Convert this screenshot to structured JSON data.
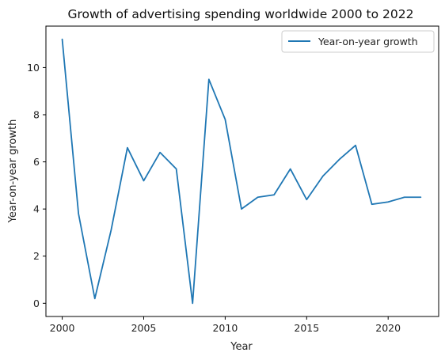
{
  "chart_data": {
    "type": "line",
    "title": "Growth of advertising spending worldwide 2000 to 2022",
    "xlabel": "Year",
    "ylabel": "Year-on-year growth",
    "x": [
      2000,
      2001,
      2002,
      2003,
      2004,
      2005,
      2006,
      2007,
      2008,
      2009,
      2010,
      2011,
      2012,
      2013,
      2014,
      2015,
      2016,
      2017,
      2018,
      2019,
      2020,
      2021,
      2022
    ],
    "series": [
      {
        "name": "Year-on-year growth",
        "color": "#1f77b4",
        "values": [
          11.2,
          3.8,
          0.2,
          3.1,
          6.6,
          5.2,
          6.4,
          5.7,
          0.0,
          9.5,
          7.8,
          4.0,
          4.5,
          4.6,
          5.7,
          4.4,
          5.4,
          6.1,
          6.7,
          4.2,
          4.3,
          4.5,
          4.5
        ]
      }
    ],
    "xlim": [
      1999.0,
      2023.1
    ],
    "ylim": [
      -0.56,
      11.76
    ],
    "xticks": [
      2000,
      2005,
      2010,
      2015,
      2020
    ],
    "xtick_labels": [
      "2000",
      "2005",
      "2010",
      "2015",
      "2020"
    ],
    "yticks": [
      0,
      2,
      4,
      6,
      8,
      10
    ],
    "ytick_labels": [
      "0",
      "2",
      "4",
      "6",
      "8",
      "10"
    ],
    "legend_position": "upper right",
    "grid": false
  }
}
